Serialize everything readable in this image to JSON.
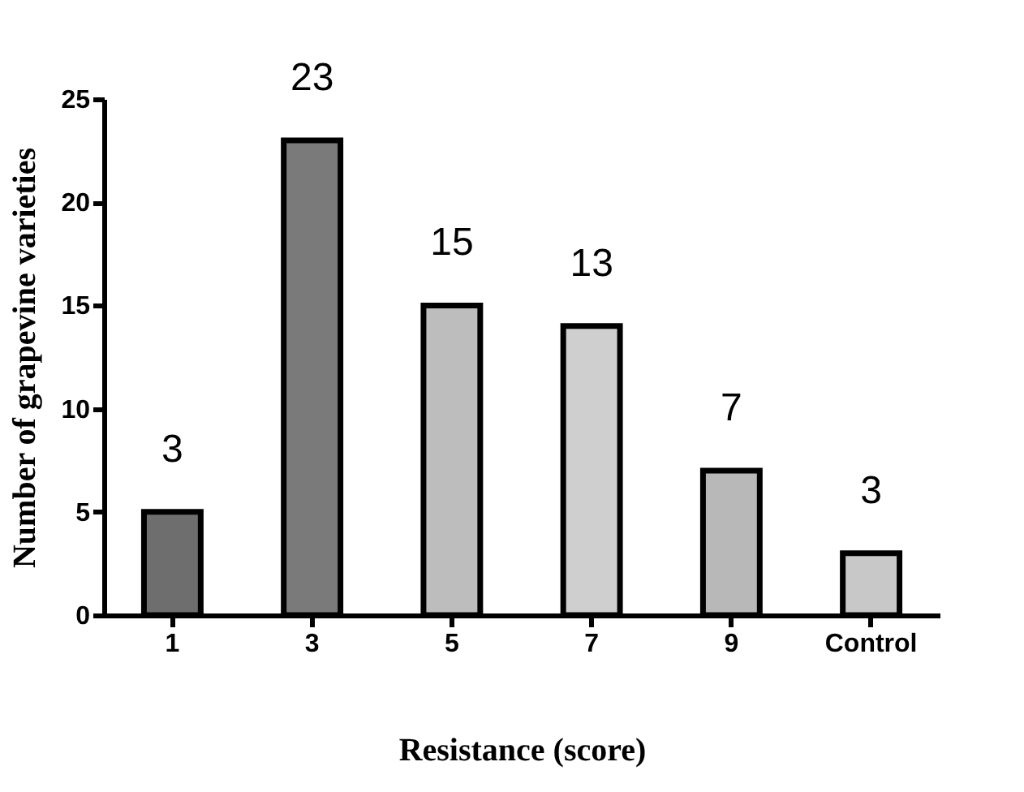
{
  "chart_data": {
    "type": "bar",
    "xlabel": "Resistance (score)",
    "ylabel": "Number of grapevine varieties",
    "categories": [
      "1",
      "3",
      "5",
      "7",
      "9",
      "Control"
    ],
    "values": [
      5,
      23,
      15,
      14,
      7,
      3
    ],
    "colors": [
      "#6e6e6e",
      "#7a7a7a",
      "#bdbdbd",
      "#cfcfcf",
      "#b8b8b8",
      "#c8c8c8"
    ],
    "annotations": [
      {
        "text": "3",
        "x": "1",
        "y": 5
      },
      {
        "text": "23",
        "x": "3",
        "y": 23
      },
      {
        "text": "15",
        "x": "5",
        "y": 15
      },
      {
        "text": "13",
        "x": "7",
        "y": 14
      },
      {
        "text": "7",
        "x": "9",
        "y": 7
      },
      {
        "text": "3",
        "x": "Control",
        "y": 3
      }
    ],
    "ylim": [
      0,
      25
    ],
    "yticks": [
      0,
      5,
      10,
      15,
      20,
      25
    ],
    "grid": false,
    "legend": false
  }
}
